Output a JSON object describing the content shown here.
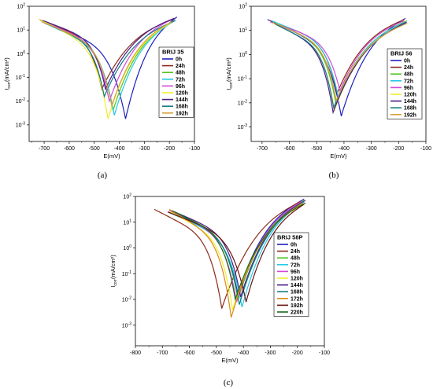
{
  "colors": {
    "0h": "#1f1fbf",
    "24h": "#8b2b1b",
    "48h": "#55c51f",
    "72h": "#26c9e3",
    "96h": "#d14ad8",
    "120h": "#f0ee2a",
    "144h": "#4b1e86",
    "168h": "#137a86",
    "172h": "#d88a18",
    "192h": "#6b1212",
    "220h": "#1d6b1d",
    "192h_a": "#d8a03a"
  },
  "chart_data": [
    {
      "id": "a",
      "panel_label": "(a)",
      "type": "line",
      "legend_title": "BRIJ 35",
      "legend_placement": "right-inside",
      "xlabel": "E(mV)",
      "ylabel": "I_corr (mA/cm²)",
      "ylabel_main": "I",
      "ylabel_sub": "corr",
      "ylabel_tail": "(mA/cm²)",
      "xlim": [
        -760,
        -100
      ],
      "ylim_log10": [
        -3.7,
        2
      ],
      "x_ticks": [
        "-700",
        "-600",
        "-500",
        "-400",
        "-300",
        "-200",
        "-100"
      ],
      "x_tick_values": [
        -700,
        -600,
        -500,
        -400,
        -300,
        -200,
        -100
      ],
      "y_ticks": [
        {
          "b": "10",
          "e": "-3",
          "v": -3
        },
        {
          "b": "10",
          "e": "-2",
          "v": -2
        },
        {
          "b": "10",
          "e": "-1",
          "v": -1
        },
        {
          "b": "10",
          "e": "0",
          "v": 0
        },
        {
          "b": "10",
          "e": "1",
          "v": 1
        },
        {
          "b": "10",
          "e": "2",
          "v": 2
        }
      ],
      "series": [
        {
          "name": "0h",
          "ecorr": -375,
          "icorr_log": -2.75,
          "anodic_end": [
            -170,
            1.55
          ],
          "cathodic_end": [
            -700,
            1.35
          ],
          "color": "0h"
        },
        {
          "name": "24h",
          "ecorr": -470,
          "icorr_log": -1.5,
          "anodic_end": [
            -185,
            1.45
          ],
          "cathodic_end": [
            -720,
            1.45
          ],
          "color": "24h"
        },
        {
          "name": "48h",
          "ecorr": -425,
          "icorr_log": -2.4,
          "anodic_end": [
            -180,
            1.4
          ],
          "cathodic_end": [
            -710,
            1.4
          ],
          "color": "48h"
        },
        {
          "name": "72h",
          "ecorr": -420,
          "icorr_log": -2.6,
          "anodic_end": [
            -185,
            1.35
          ],
          "cathodic_end": [
            -700,
            1.3
          ],
          "color": "72h"
        },
        {
          "name": "96h",
          "ecorr": -440,
          "icorr_log": -2.0,
          "anodic_end": [
            -190,
            1.45
          ],
          "cathodic_end": [
            -715,
            1.4
          ],
          "color": "96h"
        },
        {
          "name": "120h",
          "ecorr": -445,
          "icorr_log": -2.75,
          "anodic_end": [
            -195,
            1.3
          ],
          "cathodic_end": [
            -720,
            1.45
          ],
          "color": "120h"
        },
        {
          "name": "144h",
          "ecorr": -455,
          "icorr_log": -1.5,
          "anodic_end": [
            -180,
            1.5
          ],
          "cathodic_end": [
            -705,
            1.4
          ],
          "color": "144h"
        },
        {
          "name": "168h",
          "ecorr": -460,
          "icorr_log": -1.8,
          "anodic_end": [
            -175,
            1.4
          ],
          "cathodic_end": [
            -700,
            1.3
          ],
          "color": "168h"
        },
        {
          "name": "192h",
          "ecorr": -430,
          "icorr_log": -2.2,
          "anodic_end": [
            -190,
            1.35
          ],
          "cathodic_end": [
            -710,
            1.35
          ],
          "color": "192h_a"
        }
      ]
    },
    {
      "id": "b",
      "panel_label": "(b)",
      "type": "line",
      "legend_title": "BRIJ 56",
      "legend_placement": "right-inside",
      "xlabel": "E(mV)",
      "ylabel": "I_corr (mA/cm²)",
      "ylabel_main": "I",
      "ylabel_sub": "corr",
      "ylabel_tail": "(mA/cm²)",
      "xlim": [
        -740,
        -100
      ],
      "ylim_log10": [
        -3.6,
        2
      ],
      "x_ticks": [
        "-700",
        "-600",
        "-500",
        "-400",
        "-300",
        "-200",
        "-100"
      ],
      "x_tick_values": [
        -700,
        -600,
        -500,
        -400,
        -300,
        -200,
        -100
      ],
      "y_ticks": [
        {
          "b": "10",
          "e": "-3",
          "v": -3
        },
        {
          "b": "10",
          "e": "-2",
          "v": -2
        },
        {
          "b": "10",
          "e": "-1",
          "v": -1
        },
        {
          "b": "10",
          "e": "0",
          "v": 0
        },
        {
          "b": "10",
          "e": "1",
          "v": 1
        },
        {
          "b": "10",
          "e": "2",
          "v": 2
        }
      ],
      "series": [
        {
          "name": "0h",
          "ecorr": -410,
          "icorr_log": -2.55,
          "anodic_end": [
            -175,
            1.5
          ],
          "cathodic_end": [
            -680,
            1.45
          ],
          "color": "0h"
        },
        {
          "name": "24h",
          "ecorr": -425,
          "icorr_log": -1.6,
          "anodic_end": [
            -180,
            1.45
          ],
          "cathodic_end": [
            -670,
            1.4
          ],
          "color": "24h"
        },
        {
          "name": "48h",
          "ecorr": -430,
          "icorr_log": -2.0,
          "anodic_end": [
            -170,
            1.4
          ],
          "cathodic_end": [
            -660,
            1.35
          ],
          "color": "48h"
        },
        {
          "name": "72h",
          "ecorr": -420,
          "icorr_log": -1.8,
          "anodic_end": [
            -175,
            1.35
          ],
          "cathodic_end": [
            -665,
            1.4
          ],
          "color": "72h"
        },
        {
          "name": "96h",
          "ecorr": -415,
          "icorr_log": -1.5,
          "anodic_end": [
            -180,
            1.4
          ],
          "cathodic_end": [
            -670,
            1.35
          ],
          "color": "96h"
        },
        {
          "name": "120h",
          "ecorr": -435,
          "icorr_log": -2.3,
          "anodic_end": [
            -175,
            1.3
          ],
          "cathodic_end": [
            -660,
            1.3
          ],
          "color": "120h"
        },
        {
          "name": "144h",
          "ecorr": -440,
          "icorr_log": -2.4,
          "anodic_end": [
            -170,
            1.35
          ],
          "cathodic_end": [
            -655,
            1.3
          ],
          "color": "144h"
        },
        {
          "name": "168h",
          "ecorr": -438,
          "icorr_log": -2.2,
          "anodic_end": [
            -172,
            1.3
          ],
          "cathodic_end": [
            -650,
            1.25
          ],
          "color": "168h"
        },
        {
          "name": "192h",
          "ecorr": -428,
          "icorr_log": -1.9,
          "anodic_end": [
            -168,
            1.3
          ],
          "cathodic_end": [
            -652,
            1.3
          ],
          "color": "192h_a"
        }
      ]
    },
    {
      "id": "c",
      "panel_label": "(c)",
      "type": "line",
      "legend_title": "BRIJ 58P",
      "legend_placement": "right-inside",
      "xlabel": "E(mV)",
      "ylabel": "I_corr (mA/cm²)",
      "ylabel_main": "I",
      "ylabel_sub": "corr",
      "ylabel_tail": "(mA/cm²)",
      "xlim": [
        -800,
        -100
      ],
      "ylim_log10": [
        -3.8,
        2
      ],
      "x_ticks": [
        "-800",
        "-700",
        "-600",
        "-500",
        "-400",
        "-300",
        "-200",
        "-100"
      ],
      "x_tick_values": [
        -800,
        -700,
        -600,
        -500,
        -400,
        -300,
        -200,
        -100
      ],
      "y_ticks": [
        {
          "b": "10",
          "e": "-3",
          "v": -3
        },
        {
          "b": "10",
          "e": "-2",
          "v": -2
        },
        {
          "b": "10",
          "e": "-1",
          "v": -1
        },
        {
          "b": "10",
          "e": "0",
          "v": 0
        },
        {
          "b": "10",
          "e": "1",
          "v": 1
        },
        {
          "b": "10",
          "e": "2",
          "v": 2
        }
      ],
      "series": [
        {
          "name": "0h",
          "ecorr": -420,
          "icorr_log": -1.8,
          "anodic_end": [
            -175,
            1.9
          ],
          "cathodic_end": [
            -680,
            1.4
          ],
          "color": "0h"
        },
        {
          "name": "24h",
          "ecorr": -480,
          "icorr_log": -2.35,
          "anodic_end": [
            -190,
            1.8
          ],
          "cathodic_end": [
            -730,
            1.5
          ],
          "color": "24h"
        },
        {
          "name": "48h",
          "ecorr": -420,
          "icorr_log": -2.0,
          "anodic_end": [
            -175,
            1.85
          ],
          "cathodic_end": [
            -670,
            1.45
          ],
          "color": "48h"
        },
        {
          "name": "72h",
          "ecorr": -405,
          "icorr_log": -2.3,
          "anodic_end": [
            -180,
            1.75
          ],
          "cathodic_end": [
            -680,
            1.4
          ],
          "color": "72h"
        },
        {
          "name": "96h",
          "ecorr": -425,
          "icorr_log": -2.1,
          "anodic_end": [
            -185,
            1.8
          ],
          "cathodic_end": [
            -675,
            1.45
          ],
          "color": "96h"
        },
        {
          "name": "120h",
          "ecorr": -440,
          "icorr_log": -2.4,
          "anodic_end": [
            -180,
            1.7
          ],
          "cathodic_end": [
            -670,
            1.4
          ],
          "color": "120h"
        },
        {
          "name": "144h",
          "ecorr": -410,
          "icorr_log": -1.9,
          "anodic_end": [
            -170,
            1.85
          ],
          "cathodic_end": [
            -665,
            1.45
          ],
          "color": "144h"
        },
        {
          "name": "168h",
          "ecorr": -415,
          "icorr_log": -2.2,
          "anodic_end": [
            -175,
            1.8
          ],
          "cathodic_end": [
            -660,
            1.4
          ],
          "color": "168h"
        },
        {
          "name": "172h",
          "ecorr": -445,
          "icorr_log": -2.7,
          "anodic_end": [
            -180,
            1.75
          ],
          "cathodic_end": [
            -675,
            1.5
          ],
          "color": "172h"
        },
        {
          "name": "192h",
          "ecorr": -390,
          "icorr_log": -2.1,
          "anodic_end": [
            -175,
            1.7
          ],
          "cathodic_end": [
            -680,
            1.4
          ],
          "color": "192h"
        },
        {
          "name": "220h",
          "ecorr": -430,
          "icorr_log": -2.0,
          "anodic_end": [
            -170,
            1.75
          ],
          "cathodic_end": [
            -665,
            1.45
          ],
          "color": "220h"
        }
      ]
    }
  ]
}
